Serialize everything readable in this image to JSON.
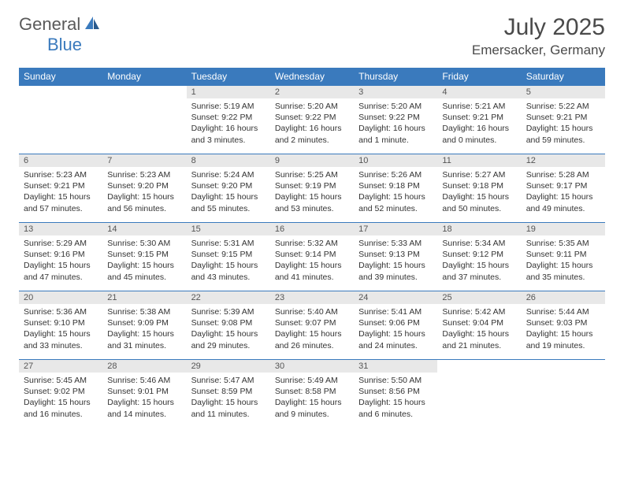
{
  "logo": {
    "general": "General",
    "blue": "Blue"
  },
  "title": "July 2025",
  "location": "Emersacker, Germany",
  "colors": {
    "header_bg": "#3a7abd",
    "header_text": "#ffffff",
    "daynum_bg": "#e8e8e8",
    "border": "#3a7abd"
  },
  "weekdays": [
    "Sunday",
    "Monday",
    "Tuesday",
    "Wednesday",
    "Thursday",
    "Friday",
    "Saturday"
  ],
  "weeks": [
    [
      null,
      null,
      {
        "n": "1",
        "sunrise": "5:19 AM",
        "sunset": "9:22 PM",
        "daylight": "16 hours and 3 minutes."
      },
      {
        "n": "2",
        "sunrise": "5:20 AM",
        "sunset": "9:22 PM",
        "daylight": "16 hours and 2 minutes."
      },
      {
        "n": "3",
        "sunrise": "5:20 AM",
        "sunset": "9:22 PM",
        "daylight": "16 hours and 1 minute."
      },
      {
        "n": "4",
        "sunrise": "5:21 AM",
        "sunset": "9:21 PM",
        "daylight": "16 hours and 0 minutes."
      },
      {
        "n": "5",
        "sunrise": "5:22 AM",
        "sunset": "9:21 PM",
        "daylight": "15 hours and 59 minutes."
      }
    ],
    [
      {
        "n": "6",
        "sunrise": "5:23 AM",
        "sunset": "9:21 PM",
        "daylight": "15 hours and 57 minutes."
      },
      {
        "n": "7",
        "sunrise": "5:23 AM",
        "sunset": "9:20 PM",
        "daylight": "15 hours and 56 minutes."
      },
      {
        "n": "8",
        "sunrise": "5:24 AM",
        "sunset": "9:20 PM",
        "daylight": "15 hours and 55 minutes."
      },
      {
        "n": "9",
        "sunrise": "5:25 AM",
        "sunset": "9:19 PM",
        "daylight": "15 hours and 53 minutes."
      },
      {
        "n": "10",
        "sunrise": "5:26 AM",
        "sunset": "9:18 PM",
        "daylight": "15 hours and 52 minutes."
      },
      {
        "n": "11",
        "sunrise": "5:27 AM",
        "sunset": "9:18 PM",
        "daylight": "15 hours and 50 minutes."
      },
      {
        "n": "12",
        "sunrise": "5:28 AM",
        "sunset": "9:17 PM",
        "daylight": "15 hours and 49 minutes."
      }
    ],
    [
      {
        "n": "13",
        "sunrise": "5:29 AM",
        "sunset": "9:16 PM",
        "daylight": "15 hours and 47 minutes."
      },
      {
        "n": "14",
        "sunrise": "5:30 AM",
        "sunset": "9:15 PM",
        "daylight": "15 hours and 45 minutes."
      },
      {
        "n": "15",
        "sunrise": "5:31 AM",
        "sunset": "9:15 PM",
        "daylight": "15 hours and 43 minutes."
      },
      {
        "n": "16",
        "sunrise": "5:32 AM",
        "sunset": "9:14 PM",
        "daylight": "15 hours and 41 minutes."
      },
      {
        "n": "17",
        "sunrise": "5:33 AM",
        "sunset": "9:13 PM",
        "daylight": "15 hours and 39 minutes."
      },
      {
        "n": "18",
        "sunrise": "5:34 AM",
        "sunset": "9:12 PM",
        "daylight": "15 hours and 37 minutes."
      },
      {
        "n": "19",
        "sunrise": "5:35 AM",
        "sunset": "9:11 PM",
        "daylight": "15 hours and 35 minutes."
      }
    ],
    [
      {
        "n": "20",
        "sunrise": "5:36 AM",
        "sunset": "9:10 PM",
        "daylight": "15 hours and 33 minutes."
      },
      {
        "n": "21",
        "sunrise": "5:38 AM",
        "sunset": "9:09 PM",
        "daylight": "15 hours and 31 minutes."
      },
      {
        "n": "22",
        "sunrise": "5:39 AM",
        "sunset": "9:08 PM",
        "daylight": "15 hours and 29 minutes."
      },
      {
        "n": "23",
        "sunrise": "5:40 AM",
        "sunset": "9:07 PM",
        "daylight": "15 hours and 26 minutes."
      },
      {
        "n": "24",
        "sunrise": "5:41 AM",
        "sunset": "9:06 PM",
        "daylight": "15 hours and 24 minutes."
      },
      {
        "n": "25",
        "sunrise": "5:42 AM",
        "sunset": "9:04 PM",
        "daylight": "15 hours and 21 minutes."
      },
      {
        "n": "26",
        "sunrise": "5:44 AM",
        "sunset": "9:03 PM",
        "daylight": "15 hours and 19 minutes."
      }
    ],
    [
      {
        "n": "27",
        "sunrise": "5:45 AM",
        "sunset": "9:02 PM",
        "daylight": "15 hours and 16 minutes."
      },
      {
        "n": "28",
        "sunrise": "5:46 AM",
        "sunset": "9:01 PM",
        "daylight": "15 hours and 14 minutes."
      },
      {
        "n": "29",
        "sunrise": "5:47 AM",
        "sunset": "8:59 PM",
        "daylight": "15 hours and 11 minutes."
      },
      {
        "n": "30",
        "sunrise": "5:49 AM",
        "sunset": "8:58 PM",
        "daylight": "15 hours and 9 minutes."
      },
      {
        "n": "31",
        "sunrise": "5:50 AM",
        "sunset": "8:56 PM",
        "daylight": "15 hours and 6 minutes."
      },
      null,
      null
    ]
  ],
  "labels": {
    "sunrise": "Sunrise:",
    "sunset": "Sunset:",
    "daylight": "Daylight:"
  }
}
